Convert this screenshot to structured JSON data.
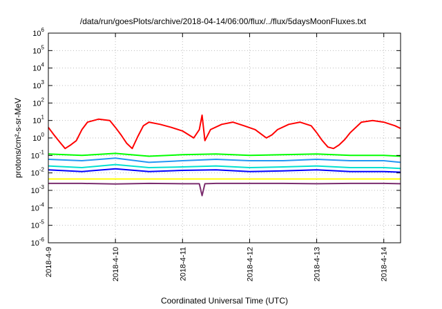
{
  "chart_data": {
    "type": "line",
    "title": "/data/run/goesPlots/archive/2018-04-14/06:00/flux/../flux/5daysMoonFluxes.txt",
    "xlabel": "Coordinated Universal Time (UTC)",
    "ylabel": "protons/cm²-s-sr-MeV",
    "y_scale": "log",
    "ylim": [
      1e-06,
      1000000.0
    ],
    "xlim": [
      "2018-04-09T00:00",
      "2018-04-14T06:00"
    ],
    "grid": true,
    "legend": "none",
    "x_ticks": [
      {
        "value": "2018-04-09T00:00",
        "label": "2018-4-9"
      },
      {
        "value": "2018-04-10T00:00",
        "label": "2018-4-10"
      },
      {
        "value": "2018-04-11T00:00",
        "label": "2018-4-11"
      },
      {
        "value": "2018-04-12T00:00",
        "label": "2018-4-12"
      },
      {
        "value": "2018-04-13T00:00",
        "label": "2018-4-13"
      },
      {
        "value": "2018-04-14T00:00",
        "label": "2018-4-14"
      }
    ],
    "y_ticks": [
      {
        "value": 1e-06,
        "base": "10",
        "exp": "-6"
      },
      {
        "value": 1e-05,
        "base": "10",
        "exp": "-5"
      },
      {
        "value": 0.0001,
        "base": "10",
        "exp": "-4"
      },
      {
        "value": 0.001,
        "base": "10",
        "exp": "-3"
      },
      {
        "value": 0.01,
        "base": "10",
        "exp": "-2"
      },
      {
        "value": 0.1,
        "base": "10",
        "exp": "-1"
      },
      {
        "value": 1,
        "base": "10",
        "exp": "0"
      },
      {
        "value": 10,
        "base": "10",
        "exp": "1"
      },
      {
        "value": 100,
        "base": "10",
        "exp": "2"
      },
      {
        "value": 1000,
        "base": "10",
        "exp": "3"
      },
      {
        "value": 10000,
        "base": "10",
        "exp": "4"
      },
      {
        "value": 100000,
        "base": "10",
        "exp": "5"
      },
      {
        "value": 1000000,
        "base": "10",
        "exp": "6"
      }
    ],
    "series": [
      {
        "color": "#ff0000",
        "x": [
          "2018-04-09T00:00",
          "2018-04-09T02:00",
          "2018-04-09T04:00",
          "2018-04-09T06:00",
          "2018-04-09T08:00",
          "2018-04-09T10:00",
          "2018-04-09T12:00",
          "2018-04-09T14:00",
          "2018-04-09T18:00",
          "2018-04-09T22:00",
          "2018-04-10T00:00",
          "2018-04-10T02:00",
          "2018-04-10T04:00",
          "2018-04-10T06:00",
          "2018-04-10T08:00",
          "2018-04-10T10:00",
          "2018-04-10T12:00",
          "2018-04-10T16:00",
          "2018-04-10T20:00",
          "2018-04-11T00:00",
          "2018-04-11T04:00",
          "2018-04-11T06:00",
          "2018-04-11T07:00",
          "2018-04-11T08:00",
          "2018-04-11T10:00",
          "2018-04-11T14:00",
          "2018-04-11T18:00",
          "2018-04-11T22:00",
          "2018-04-12T02:00",
          "2018-04-12T06:00",
          "2018-04-12T08:00",
          "2018-04-12T10:00",
          "2018-04-12T14:00",
          "2018-04-12T18:00",
          "2018-04-12T22:00",
          "2018-04-13T00:00",
          "2018-04-13T02:00",
          "2018-04-13T04:00",
          "2018-04-13T06:00",
          "2018-04-13T08:00",
          "2018-04-13T10:00",
          "2018-04-13T12:00",
          "2018-04-13T16:00",
          "2018-04-13T20:00",
          "2018-04-14T00:00",
          "2018-04-14T04:00",
          "2018-04-14T06:00"
        ],
        "values": [
          4,
          1.5,
          0.6,
          0.25,
          0.4,
          0.7,
          3,
          8,
          12,
          10,
          4,
          1.5,
          0.5,
          0.25,
          1.2,
          5,
          8,
          6,
          4,
          2.5,
          1,
          3,
          20,
          0.7,
          3,
          6,
          8,
          5,
          3,
          1,
          1.5,
          3,
          6,
          8,
          5,
          2,
          0.7,
          0.3,
          0.25,
          0.4,
          0.8,
          2,
          8,
          10,
          8,
          5,
          3.5
        ]
      },
      {
        "color": "#00ff00",
        "x": [
          "2018-04-09T00:00",
          "2018-04-09T12:00",
          "2018-04-10T00:00",
          "2018-04-10T12:00",
          "2018-04-11T00:00",
          "2018-04-11T12:00",
          "2018-04-12T00:00",
          "2018-04-12T12:00",
          "2018-04-13T00:00",
          "2018-04-13T12:00",
          "2018-04-14T00:00",
          "2018-04-14T06:00"
        ],
        "values": [
          0.12,
          0.1,
          0.13,
          0.09,
          0.11,
          0.12,
          0.1,
          0.11,
          0.12,
          0.1,
          0.1,
          0.09
        ]
      },
      {
        "color": "#2196f3",
        "x": [
          "2018-04-09T00:00",
          "2018-04-09T12:00",
          "2018-04-10T00:00",
          "2018-04-10T12:00",
          "2018-04-11T00:00",
          "2018-04-11T12:00",
          "2018-04-12T00:00",
          "2018-04-12T12:00",
          "2018-04-13T00:00",
          "2018-04-13T12:00",
          "2018-04-14T00:00",
          "2018-04-14T06:00"
        ],
        "values": [
          0.06,
          0.05,
          0.07,
          0.04,
          0.05,
          0.06,
          0.05,
          0.05,
          0.06,
          0.05,
          0.05,
          0.04
        ]
      },
      {
        "color": "#00e0d0",
        "x": [
          "2018-04-09T00:00",
          "2018-04-09T12:00",
          "2018-04-10T00:00",
          "2018-04-10T12:00",
          "2018-04-11T00:00",
          "2018-04-11T12:00",
          "2018-04-12T00:00",
          "2018-04-12T12:00",
          "2018-04-13T00:00",
          "2018-04-13T12:00",
          "2018-04-14T00:00",
          "2018-04-14T06:00"
        ],
        "values": [
          0.025,
          0.02,
          0.03,
          0.02,
          0.022,
          0.025,
          0.02,
          0.022,
          0.025,
          0.02,
          0.02,
          0.018
        ]
      },
      {
        "color": "#0000ff",
        "x": [
          "2018-04-09T00:00",
          "2018-04-09T12:00",
          "2018-04-10T00:00",
          "2018-04-10T12:00",
          "2018-04-11T00:00",
          "2018-04-11T12:00",
          "2018-04-12T00:00",
          "2018-04-12T12:00",
          "2018-04-13T00:00",
          "2018-04-13T12:00",
          "2018-04-14T00:00",
          "2018-04-14T06:00"
        ],
        "values": [
          0.015,
          0.012,
          0.017,
          0.012,
          0.014,
          0.015,
          0.012,
          0.013,
          0.015,
          0.012,
          0.012,
          0.011
        ]
      },
      {
        "color": "#ffff00",
        "x": [
          "2018-04-09T00:00",
          "2018-04-10T00:00",
          "2018-04-11T00:00",
          "2018-04-12T00:00",
          "2018-04-13T00:00",
          "2018-04-14T00:00",
          "2018-04-14T06:00"
        ],
        "values": [
          0.0045,
          0.0045,
          0.0045,
          0.0045,
          0.0045,
          0.0045,
          0.0045
        ]
      },
      {
        "color": "#7b2d6e",
        "x": [
          "2018-04-09T00:00",
          "2018-04-09T12:00",
          "2018-04-10T00:00",
          "2018-04-10T12:00",
          "2018-04-11T00:00",
          "2018-04-11T06:00",
          "2018-04-11T07:00",
          "2018-04-11T08:00",
          "2018-04-11T12:00",
          "2018-04-12T00:00",
          "2018-04-12T12:00",
          "2018-04-13T00:00",
          "2018-04-13T12:00",
          "2018-04-14T00:00",
          "2018-04-14T06:00"
        ],
        "values": [
          0.0025,
          0.0025,
          0.0023,
          0.0025,
          0.0024,
          0.0024,
          0.0005,
          0.0024,
          0.0025,
          0.0025,
          0.0025,
          0.0024,
          0.0025,
          0.0025,
          0.0024
        ]
      }
    ]
  }
}
